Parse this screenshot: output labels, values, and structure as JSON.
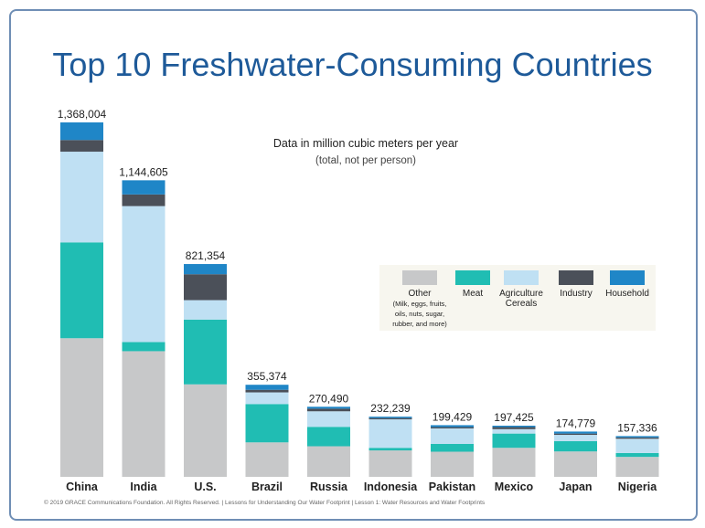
{
  "title": "Top 10 Freshwater-Consuming Countries",
  "subtitle": "Data in million cubic meters per year",
  "subtitle_note": "(total, not per person)",
  "footer": "© 2019 GRACE Communications Foundation. All Rights Reserved.  |  Lessons for Understanding Our Water Footprint  |  Lesson 1: Water Resources and Water Footprints",
  "legend": [
    {
      "label": "Other",
      "sub": [
        "(Milk, eggs, fruits,",
        "oils, nuts, sugar,",
        "rubber, and more)"
      ],
      "color": "#c7c8c9"
    },
    {
      "label": "Meat",
      "sub": [],
      "color": "#20bdb3"
    },
    {
      "label": "Agriculture Cereals",
      "sub": [],
      "color": "#bfe0f3"
    },
    {
      "label": "Industry",
      "sub": [],
      "color": "#4b5059"
    },
    {
      "label": "Household",
      "sub": [],
      "color": "#1f86c7"
    }
  ],
  "chart_data": {
    "type": "bar",
    "stacked": true,
    "title": "Top 10 Freshwater-Consuming Countries",
    "categories": [
      "China",
      "India",
      "U.S.",
      "Brazil",
      "Russia",
      "Indonesia",
      "Pakistan",
      "Mexico",
      "Japan",
      "Nigeria"
    ],
    "totals": [
      1368004,
      1144605,
      821354,
      355374,
      270490,
      232239,
      199429,
      197425,
      174779,
      157336
    ],
    "total_labels": [
      "1,368,004",
      "1,144,605",
      "821,354",
      "355,374",
      "270,490",
      "232,239",
      "199,429",
      "197,425",
      "174,779",
      "157,336"
    ],
    "series": [
      {
        "name": "Other",
        "color": "#c7c8c9",
        "values": [
          535000,
          485000,
          357000,
          133000,
          118000,
          102000,
          97000,
          112000,
          98000,
          77000
        ]
      },
      {
        "name": "Meat",
        "color": "#20bdb3",
        "values": [
          370000,
          35000,
          250000,
          148000,
          75000,
          10000,
          30000,
          55000,
          40000,
          15000
        ]
      },
      {
        "name": "Agriculture Cereals",
        "color": "#bfe0f3",
        "values": [
          350000,
          525000,
          75000,
          45000,
          60000,
          110000,
          60000,
          17000,
          24000,
          55000
        ]
      },
      {
        "name": "Industry",
        "color": "#4b5059",
        "values": [
          45000,
          45000,
          100000,
          10000,
          10000,
          5000,
          5000,
          8000,
          5000,
          5000
        ]
      },
      {
        "name": "Household",
        "color": "#1f86c7",
        "values": [
          68004,
          54605,
          39354,
          19374,
          7490,
          5239,
          7429,
          5425,
          7779,
          5336
        ]
      }
    ],
    "ylim": [
      0,
      1368004
    ],
    "legend_position": "right"
  }
}
